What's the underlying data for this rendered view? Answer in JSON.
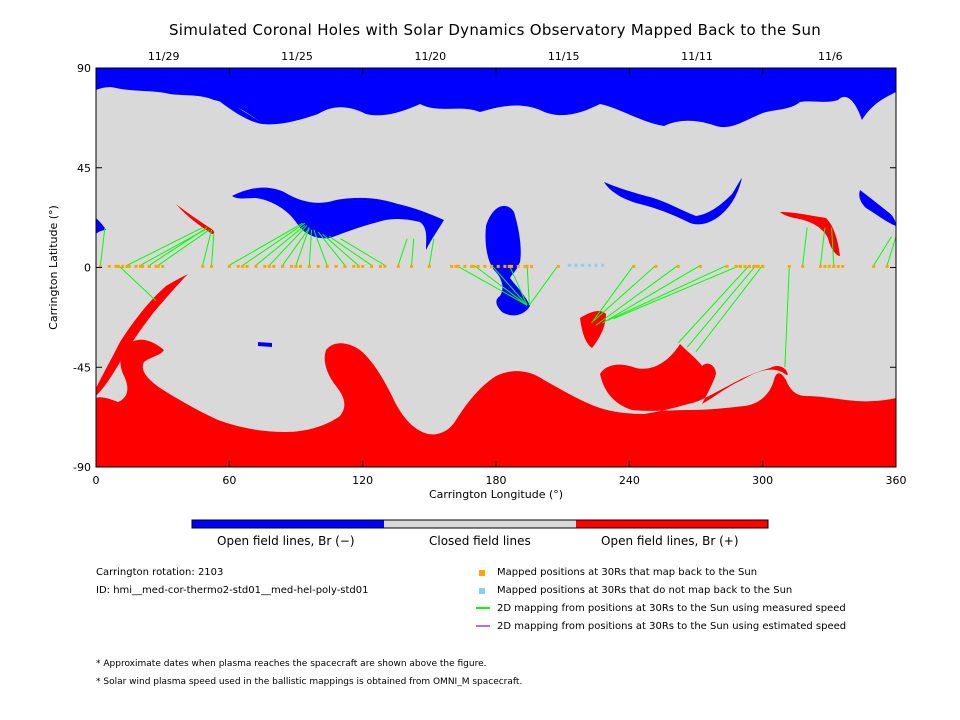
{
  "chart_data": {
    "type": "map",
    "title": "Simulated Coronal Holes with Solar Dynamics Observatory Mapped Back to the Sun",
    "xlabel": "Carrington Longitude (°)",
    "ylabel": "Carrington Latitude (°)",
    "xlim": [
      0,
      360
    ],
    "ylim": [
      -90,
      90
    ],
    "xticks": [
      "0",
      "60",
      "120",
      "180",
      "240",
      "300",
      "360"
    ],
    "yticks": [
      "90",
      "45",
      "0",
      "-45",
      "-90"
    ],
    "top_axis_dates": [
      {
        "label": "11/29",
        "lon": 30
      },
      {
        "label": "11/25",
        "lon": 90
      },
      {
        "label": "11/20",
        "lon": 150
      },
      {
        "label": "11/15",
        "lon": 210
      },
      {
        "label": "11/11",
        "lon": 270
      },
      {
        "label": "11/6",
        "lon": 330
      }
    ],
    "colorbar": [
      {
        "label": "Open field lines, Br (−)",
        "color": "#0000ff"
      },
      {
        "label": "Closed field lines",
        "color": "#d9d9d9"
      },
      {
        "label": "Open field lines, Br (+)",
        "color": "#ff0000"
      }
    ],
    "mapped_points": [
      {
        "lon": 2,
        "lat": 1,
        "foot_lon": 4,
        "foot_lat": 18
      },
      {
        "lon": 10,
        "lat": 1,
        "foot_lon": 27,
        "foot_lat": -15
      },
      {
        "lon": 14,
        "lat": 1,
        "foot_lon": 48,
        "foot_lat": 18
      },
      {
        "lon": 20,
        "lat": 1,
        "foot_lon": 49,
        "foot_lat": 17
      },
      {
        "lon": 24,
        "lat": 1,
        "foot_lon": 50,
        "foot_lat": 18
      },
      {
        "lon": 28,
        "lat": 1,
        "foot_lon": 51,
        "foot_lat": 17
      },
      {
        "lon": 48,
        "lat": 1,
        "foot_lon": 52,
        "foot_lat": 17
      },
      {
        "lon": 52,
        "lat": 1,
        "foot_lon": 53,
        "foot_lat": 15
      },
      {
        "lon": 60,
        "lat": 1,
        "foot_lon": 93,
        "foot_lat": 20
      },
      {
        "lon": 66,
        "lat": 1,
        "foot_lon": 94,
        "foot_lat": 20
      },
      {
        "lon": 72,
        "lat": 1,
        "foot_lon": 94,
        "foot_lat": 19
      },
      {
        "lon": 78,
        "lat": 1,
        "foot_lon": 95,
        "foot_lat": 19
      },
      {
        "lon": 84,
        "lat": 1,
        "foot_lon": 96,
        "foot_lat": 18
      },
      {
        "lon": 90,
        "lat": 1,
        "foot_lon": 96,
        "foot_lat": 18
      },
      {
        "lon": 96,
        "lat": 1,
        "foot_lon": 97,
        "foot_lat": 17
      },
      {
        "lon": 104,
        "lat": 1,
        "foot_lon": 98,
        "foot_lat": 17
      },
      {
        "lon": 112,
        "lat": 1,
        "foot_lon": 100,
        "foot_lat": 16
      },
      {
        "lon": 118,
        "lat": 1,
        "foot_lon": 102,
        "foot_lat": 15
      },
      {
        "lon": 124,
        "lat": 1,
        "foot_lon": 105,
        "foot_lat": 14
      },
      {
        "lon": 130,
        "lat": 1,
        "foot_lon": 110,
        "foot_lat": 13
      },
      {
        "lon": 136,
        "lat": 1,
        "foot_lon": 140,
        "foot_lat": 13
      },
      {
        "lon": 142,
        "lat": 1,
        "foot_lon": 143,
        "foot_lat": 13
      },
      {
        "lon": 150,
        "lat": 1,
        "foot_lon": 152,
        "foot_lat": 13
      },
      {
        "lon": 162,
        "lat": 1,
        "foot_lon": 194,
        "foot_lat": -17
      },
      {
        "lon": 170,
        "lat": 1,
        "foot_lon": 194,
        "foot_lat": -17
      },
      {
        "lon": 178,
        "lat": 1,
        "foot_lon": 194,
        "foot_lat": -17
      },
      {
        "lon": 186,
        "lat": 1,
        "foot_lon": 194,
        "foot_lat": -17
      },
      {
        "lon": 194,
        "lat": 1,
        "foot_lon": 195,
        "foot_lat": -17
      },
      {
        "lon": 208,
        "lat": 1,
        "foot_lon": 195,
        "foot_lat": -17
      },
      {
        "lon": 242,
        "lat": 1,
        "foot_lon": 223,
        "foot_lat": -25
      },
      {
        "lon": 252,
        "lat": 1,
        "foot_lon": 224,
        "foot_lat": -24
      },
      {
        "lon": 262,
        "lat": 1,
        "foot_lon": 225,
        "foot_lat": -26
      },
      {
        "lon": 272,
        "lat": 1,
        "foot_lon": 228,
        "foot_lat": -25
      },
      {
        "lon": 284,
        "lat": 1,
        "foot_lon": 230,
        "foot_lat": -24
      },
      {
        "lon": 290,
        "lat": 1,
        "foot_lon": 233,
        "foot_lat": -23
      },
      {
        "lon": 294,
        "lat": 1,
        "foot_lon": 262,
        "foot_lat": -34
      },
      {
        "lon": 297,
        "lat": 1,
        "foot_lon": 266,
        "foot_lat": -36
      },
      {
        "lon": 300,
        "lat": 1,
        "foot_lon": 270,
        "foot_lat": -38
      },
      {
        "lon": 312,
        "lat": 1,
        "foot_lon": 310,
        "foot_lat": -45
      },
      {
        "lon": 318,
        "lat": 1,
        "foot_lon": 320,
        "foot_lat": 18
      },
      {
        "lon": 326,
        "lat": 1,
        "foot_lon": 328,
        "foot_lat": 18
      },
      {
        "lon": 332,
        "lat": 1,
        "foot_lon": 331,
        "foot_lat": 18
      },
      {
        "lon": 350,
        "lat": 1,
        "foot_lon": 358,
        "foot_lat": 14
      },
      {
        "lon": 356,
        "lat": 1,
        "foot_lon": 360,
        "foot_lat": 14
      }
    ],
    "unmapped_points_lon": [
      213,
      216,
      219,
      222,
      225,
      228
    ]
  },
  "colorbar_labels": {
    "neg": "Open field lines, Br (−)",
    "closed": "Closed field lines",
    "pos": "Open field lines, Br (+)"
  },
  "info": {
    "rotation": "Carrington rotation: 2103",
    "id": "ID: hmi__med-cor-thermo2-std01__med-hel-poly-std01"
  },
  "legend": [
    {
      "label": "Mapped positions at 30Rs that map back to the Sun",
      "color": "#ffa500"
    },
    {
      "label": "Mapped positions at 30Rs that do not map back to the Sun",
      "color": "#87cefa"
    },
    {
      "label": "2D mapping from positions at 30Rs to the Sun using measured speed",
      "color": "#00ff00"
    },
    {
      "label": "2D mapping from positions at 30Rs to the Sun using estimated speed",
      "color": "#b469ff"
    }
  ],
  "notes": [
    "* Approximate dates when plasma reaches the spacecraft are shown above the figure.",
    "* Solar wind plasma speed used in the ballistic mappings is obtained from OMNI_M spacecraft."
  ],
  "colors": {
    "closed": "#d9d9d9",
    "open_negative": "#0000ff",
    "open_positive": "#ff0000",
    "mapped": "#ffa500",
    "unmapped": "#87cefa",
    "measured_line": "#00ff00",
    "estimated_line": "#b469ff"
  }
}
